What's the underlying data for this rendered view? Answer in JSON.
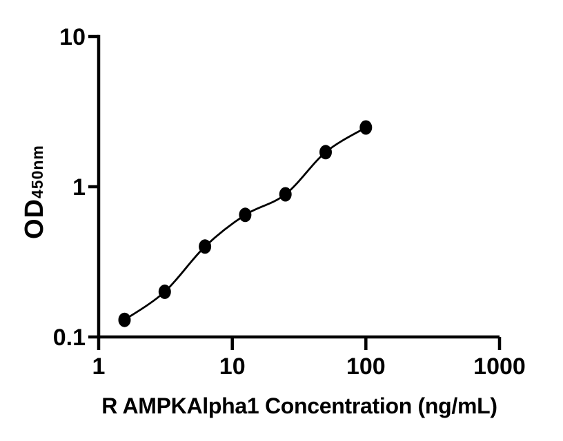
{
  "figure": {
    "background_color": "#ffffff",
    "ink_color": "#000000"
  },
  "chart_data": {
    "type": "scatter",
    "subtype": "standard-curve-with-fitted-line",
    "title": "",
    "xlabel": "R AMPKAlpha1 Concentration (ng/mL)",
    "ylabel_main": "OD",
    "ylabel_sub": "450nm",
    "x_scale": "log10",
    "y_scale": "log10",
    "xlim": [
      1,
      1000
    ],
    "ylim": [
      0.1,
      10
    ],
    "x_ticks": [
      "1",
      "10",
      "100",
      "1000"
    ],
    "y_ticks": [
      "0.1",
      "1",
      "10"
    ],
    "grid": "off",
    "legend": "none",
    "marker_color": "#000000",
    "line_color": "#000000",
    "series": [
      {
        "name": "standard-curve",
        "marker": "filled-circle",
        "x": [
          1.5625,
          3.125,
          6.25,
          12.5,
          25,
          50,
          100
        ],
        "y": [
          0.13,
          0.2,
          0.4,
          0.65,
          0.89,
          1.7,
          2.48
        ]
      }
    ]
  }
}
